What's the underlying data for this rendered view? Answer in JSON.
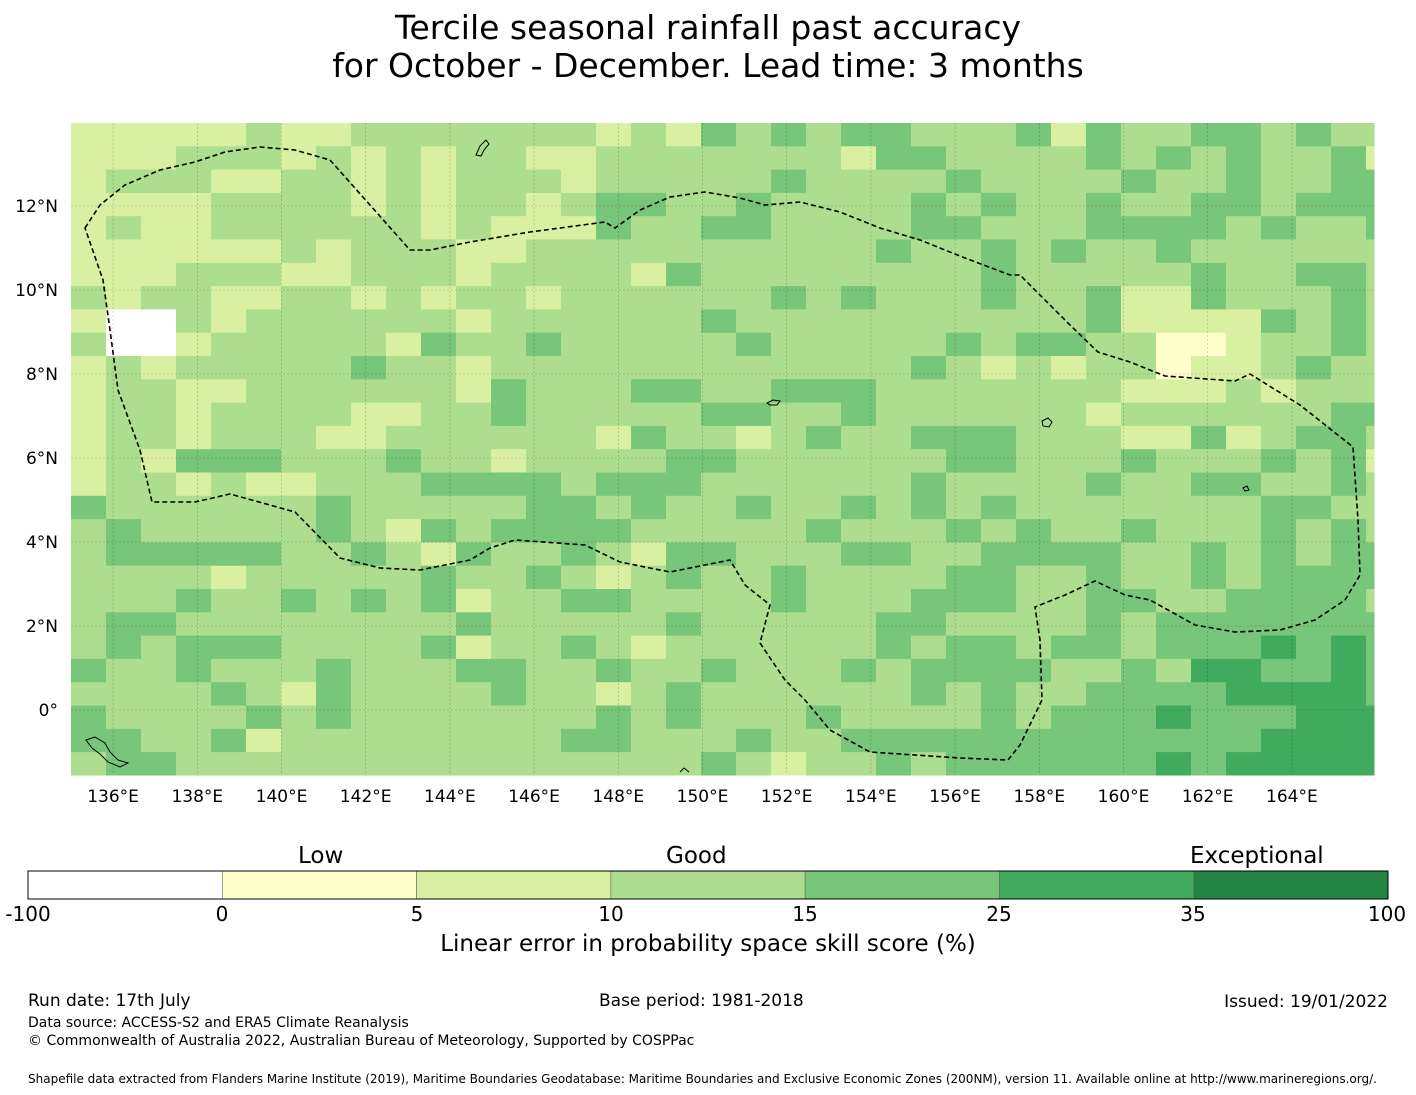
{
  "title_line1": "Tercile seasonal rainfall past accuracy",
  "title_line2": "for October - December. Lead time: 3 months",
  "map": {
    "lon_labels": [
      "136°E",
      "138°E",
      "140°E",
      "142°E",
      "144°E",
      "146°E",
      "148°E",
      "150°E",
      "152°E",
      "154°E",
      "156°E",
      "158°E",
      "160°E",
      "162°E",
      "164°E"
    ],
    "lat_labels": [
      "12°N",
      "10°N",
      "8°N",
      "6°N",
      "4°N",
      "2°N",
      "0°"
    ],
    "gridlines": true,
    "note": "Dashed line marks maritime boundary (EEZ); cells colored by skill score category"
  },
  "colorbar": {
    "categories": [
      "Low",
      "Good",
      "Exceptional"
    ],
    "ticks": [
      "-100",
      "0",
      "5",
      "10",
      "15",
      "25",
      "35",
      "100"
    ],
    "colors": [
      "#ffffff",
      "#ffffcc",
      "#d9f0a3",
      "#addd8e",
      "#78c679",
      "#41ab5d",
      "#238443"
    ],
    "label": "Linear error in probability space skill score (%)"
  },
  "footer": {
    "run_date": "Run date: 17th July",
    "base_period": "Base period: 1981-2018",
    "issued": "Issued: 19/01/2022",
    "data_source": "Data source: ACCESS-S2 and ERA5 Climate Reanalysis",
    "copyright": "© Commonwealth of Australia 2022, Australian Bureau of Meteorology, Supported by COSPPac",
    "shapefile": "Shapefile data extracted from Flanders Marine Institute (2019), Maritime Boundaries Geodatabase: Maritime Boundaries and Exclusive Economic Zones (200NM), version 11. Available online at http://www.marineregions.org/."
  }
}
